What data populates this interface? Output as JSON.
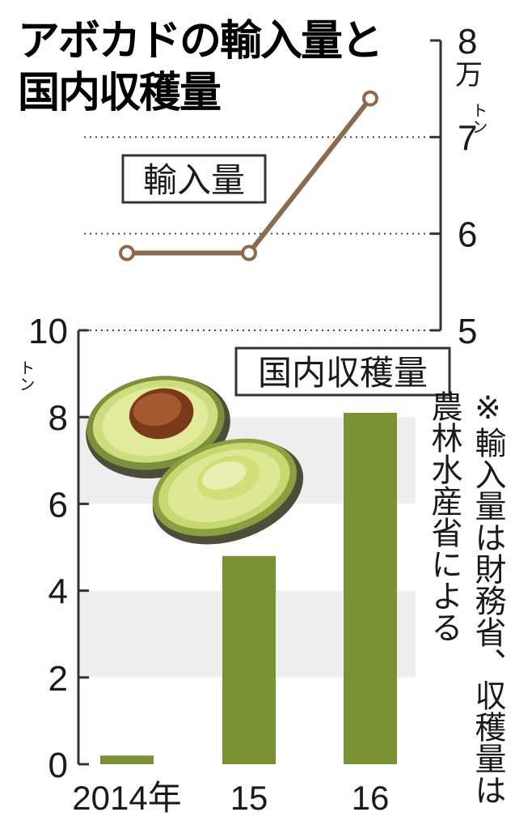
{
  "title": {
    "line1": "アボカドの輸入量と",
    "line2": "国内収穫量"
  },
  "note": "※輸入量は財務省、収穫量は\n農林水産省による",
  "colors": {
    "import_line": "#8b6a4e",
    "harvest_bar": "#7a9234",
    "band": "#eeeeee",
    "axis": "#333333"
  },
  "chart_data": [
    {
      "type": "line",
      "label": "輸入量",
      "categories": [
        "2014年",
        "15",
        "16"
      ],
      "values": [
        5.8,
        5.8,
        7.4
      ],
      "unit_main": "万",
      "unit_sub": "トン",
      "ylim": [
        5,
        8
      ],
      "yticks": [
        "5",
        "6",
        "7",
        "8"
      ],
      "grid": "dotted"
    },
    {
      "type": "bar",
      "label": "国内収穫量",
      "categories": [
        "2014年",
        "15",
        "16"
      ],
      "values": [
        0.2,
        4.8,
        8.1
      ],
      "unit": "トン",
      "ylim": [
        0,
        10
      ],
      "yticks": [
        "0",
        "2",
        "4",
        "6",
        "8",
        "10"
      ],
      "grid": "alternating bands"
    }
  ]
}
